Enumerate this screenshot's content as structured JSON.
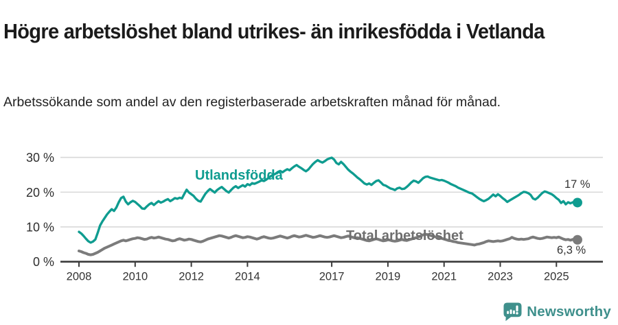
{
  "header": {
    "title": "Högre arbetslöshet bland utrikes- än inrikesfödda i Vetlanda",
    "subtitle": "Arbetssökande som andel av den registerbaserade arbetskraften månad för månad."
  },
  "footer": {
    "brand": "Newsworthy",
    "brand_color": "#3f908c",
    "logo_icon": "speech-bubble-bar-chart-icon"
  },
  "chart_data": {
    "type": "line",
    "unit": "%",
    "grid": true,
    "colors": {
      "grid": "#d8d8d8",
      "axis": "#3a3a3a",
      "tick_text": "#333333"
    },
    "ylim": [
      0,
      32
    ],
    "y_ticks": [
      {
        "value": 30,
        "label": "30 %"
      },
      {
        "value": 20,
        "label": "20 %"
      },
      {
        "value": 10,
        "label": "10 %"
      },
      {
        "value": 0,
        "label": "0 %"
      }
    ],
    "x_ticks": [
      2008,
      2010,
      2012,
      2014,
      2017,
      2019,
      2021,
      2023,
      2025
    ],
    "x_range": {
      "start_year": 2008,
      "start_month": 1,
      "end_year": 2025,
      "end_month": 10,
      "points_per_year": 12
    },
    "series": [
      {
        "name": "Utlandsfödda",
        "color": "#0f9c90",
        "label_color": "#0f9c90",
        "end_label": "17 %",
        "end_value": 17.0,
        "values": [
          8.6,
          8.1,
          7.4,
          6.6,
          5.9,
          5.5,
          5.8,
          6.4,
          8.3,
          10.4,
          11.6,
          12.6,
          13.6,
          14.4,
          15.1,
          14.6,
          15.6,
          17.1,
          18.3,
          18.7,
          17.3,
          16.5,
          17.1,
          17.5,
          17.2,
          16.6,
          16.0,
          15.3,
          15.2,
          15.9,
          16.5,
          16.9,
          16.3,
          16.9,
          17.4,
          17.0,
          17.3,
          17.7,
          18.0,
          17.4,
          17.8,
          18.3,
          18.1,
          18.4,
          18.2,
          19.5,
          20.7,
          19.9,
          19.4,
          18.9,
          18.1,
          17.5,
          17.3,
          18.4,
          19.5,
          20.3,
          20.9,
          20.4,
          19.9,
          20.6,
          21.1,
          21.5,
          20.9,
          20.3,
          19.9,
          20.6,
          21.3,
          21.7,
          21.2,
          21.6,
          22.0,
          21.6,
          22.3,
          22.0,
          22.6,
          22.4,
          22.7,
          23.0,
          23.4,
          23.2,
          23.6,
          24.1,
          24.6,
          25.0,
          25.3,
          25.8,
          26.1,
          25.7,
          26.2,
          26.6,
          26.3,
          26.9,
          27.4,
          27.8,
          27.3,
          26.9,
          26.4,
          26.0,
          26.5,
          27.3,
          28.1,
          28.7,
          29.2,
          28.8,
          28.5,
          28.9,
          29.4,
          29.7,
          29.9,
          29.4,
          28.4,
          28.0,
          28.7,
          28.1,
          27.3,
          26.5,
          25.9,
          25.4,
          24.8,
          24.2,
          23.7,
          23.1,
          22.5,
          22.2,
          22.5,
          22.1,
          22.7,
          23.2,
          23.4,
          22.8,
          22.1,
          21.9,
          21.5,
          21.1,
          20.9,
          20.6,
          21.1,
          21.3,
          20.9,
          21.0,
          21.5,
          22.1,
          22.8,
          23.3,
          23.1,
          22.7,
          23.3,
          24.0,
          24.4,
          24.5,
          24.2,
          24.0,
          23.8,
          23.6,
          23.4,
          23.5,
          23.3,
          23.0,
          22.7,
          22.3,
          22.0,
          21.7,
          21.3,
          21.0,
          20.7,
          20.4,
          20.1,
          19.8,
          19.6,
          19.1,
          18.6,
          18.1,
          17.7,
          17.4,
          17.7,
          18.1,
          18.7,
          19.3,
          18.8,
          19.4,
          18.9,
          18.3,
          17.8,
          17.2,
          17.6,
          18.0,
          18.4,
          18.8,
          19.2,
          19.7,
          20.1,
          20.0,
          19.7,
          19.2,
          18.2,
          17.9,
          18.4,
          19.1,
          19.8,
          20.2,
          20.0,
          19.7,
          19.4,
          18.9,
          18.3,
          17.8,
          16.9,
          17.4,
          16.5,
          17.1,
          16.8,
          17.1,
          16.8,
          17.0
        ]
      },
      {
        "name": "Total arbetslöshet",
        "color": "#7b7b7b",
        "label_color": "#6e6e6e",
        "end_label": "6,3 %",
        "end_value": 6.3,
        "values": [
          3.1,
          2.9,
          2.6,
          2.4,
          2.1,
          2.0,
          2.1,
          2.4,
          2.7,
          3.1,
          3.5,
          3.9,
          4.2,
          4.5,
          4.8,
          5.1,
          5.4,
          5.7,
          6.0,
          6.2,
          6.0,
          6.2,
          6.4,
          6.6,
          6.7,
          6.9,
          6.8,
          6.6,
          6.4,
          6.5,
          6.8,
          7.0,
          6.8,
          6.9,
          7.1,
          6.9,
          6.7,
          6.5,
          6.4,
          6.2,
          6.0,
          6.1,
          6.4,
          6.6,
          6.4,
          6.2,
          6.3,
          6.5,
          6.4,
          6.2,
          6.0,
          5.8,
          5.7,
          5.9,
          6.2,
          6.5,
          6.7,
          6.9,
          7.1,
          7.3,
          7.5,
          7.4,
          7.2,
          7.0,
          6.8,
          7.0,
          7.3,
          7.5,
          7.3,
          7.1,
          6.9,
          7.0,
          7.2,
          7.1,
          6.9,
          6.7,
          6.5,
          6.7,
          7.0,
          7.2,
          7.0,
          6.8,
          6.7,
          6.8,
          7.0,
          7.2,
          7.4,
          7.2,
          7.0,
          6.8,
          7.0,
          7.3,
          7.5,
          7.3,
          7.1,
          7.2,
          7.4,
          7.6,
          7.4,
          7.2,
          7.0,
          7.1,
          7.3,
          7.5,
          7.3,
          7.1,
          7.0,
          7.1,
          7.3,
          7.5,
          7.3,
          7.1,
          6.9,
          7.0,
          7.2,
          7.4,
          7.2,
          7.0,
          6.8,
          6.9,
          6.7,
          6.5,
          6.3,
          6.1,
          6.0,
          6.2,
          6.4,
          6.6,
          6.4,
          6.2,
          6.0,
          6.1,
          6.3,
          6.2,
          6.0,
          5.9,
          6.0,
          6.2,
          6.4,
          6.2,
          6.1,
          6.3,
          6.5,
          6.7,
          6.9,
          7.1,
          7.4,
          7.7,
          7.9,
          7.8,
          7.6,
          7.4,
          7.2,
          7.0,
          6.8,
          6.7,
          6.5,
          6.3,
          6.1,
          6.0,
          5.8,
          5.7,
          5.5,
          5.4,
          5.3,
          5.2,
          5.1,
          5.0,
          4.9,
          4.8,
          5.0,
          5.1,
          5.3,
          5.5,
          5.8,
          6.0,
          5.9,
          5.8,
          5.9,
          6.0,
          5.9,
          6.0,
          6.2,
          6.4,
          6.6,
          7.0,
          6.7,
          6.5,
          6.4,
          6.5,
          6.4,
          6.5,
          6.6,
          6.9,
          7.1,
          6.9,
          6.7,
          6.6,
          6.7,
          6.9,
          7.1,
          7.0,
          6.9,
          7.0,
          6.9,
          7.1,
          6.8,
          6.5,
          6.3,
          6.4,
          6.2,
          6.4,
          6.2,
          6.3
        ]
      }
    ],
    "title": "Högre arbetslöshet bland utrikes- än inrikesfödda i Vetlanda",
    "xlabel": "",
    "ylabel": ""
  }
}
